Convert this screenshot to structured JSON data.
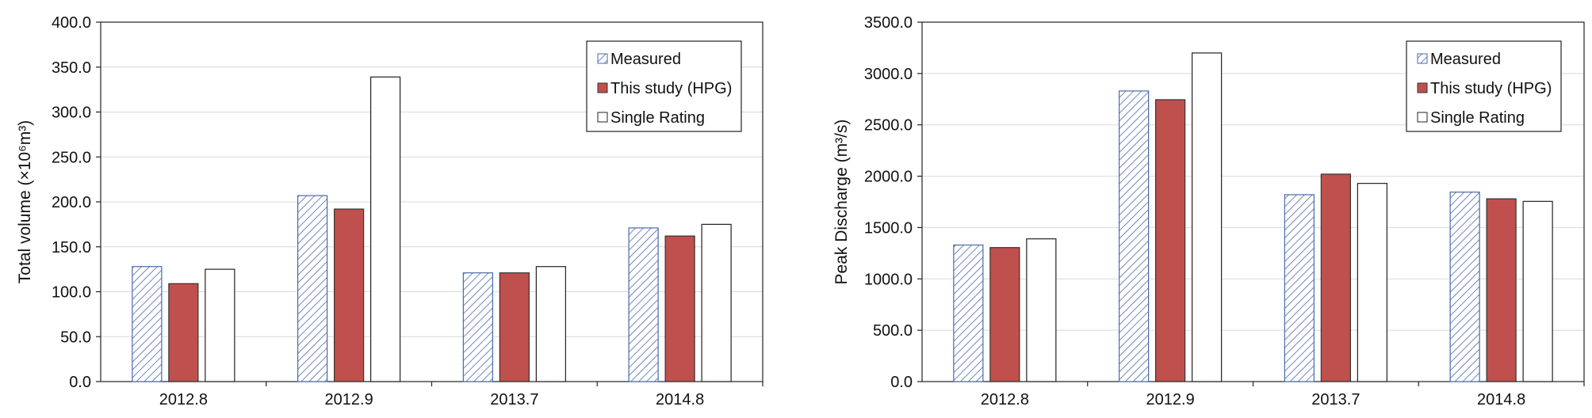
{
  "colors": {
    "measured_stroke": "#4a6aa8",
    "hpg_fill": "#c0504d",
    "hpg_stroke": "#333333",
    "single_fill": "#ffffff",
    "grid": "#d9d9d9",
    "axis": "#222222"
  },
  "chart_data": [
    {
      "type": "bar",
      "title": "",
      "xlabel": "",
      "ylabel": "Total volume (×10⁶m³)",
      "ylim": [
        0,
        400
      ],
      "ytick_labels": [
        "0.0",
        "50.0",
        "100.0",
        "150.0",
        "200.0",
        "250.0",
        "300.0",
        "350.0",
        "400.0"
      ],
      "categories": [
        "2012.8",
        "2012.9",
        "2013.7",
        "2014.8"
      ],
      "series": [
        {
          "name": "Measured",
          "style": "hatched",
          "values": [
            128,
            207,
            121,
            171
          ]
        },
        {
          "name": "This study (HPG)",
          "style": "red",
          "values": [
            109,
            192,
            121,
            162
          ]
        },
        {
          "name": "Single Rating",
          "style": "white",
          "values": [
            125,
            339,
            128,
            175
          ]
        }
      ],
      "grid": true,
      "legend_position": "top-right"
    },
    {
      "type": "bar",
      "title": "",
      "xlabel": "",
      "ylabel": "Peak Discharge (m³/s)",
      "ylim": [
        0,
        3500
      ],
      "ytick_labels": [
        "0.0",
        "500.0",
        "1000.0",
        "1500.0",
        "2000.0",
        "2500.0",
        "3000.0",
        "3500.0"
      ],
      "categories": [
        "2012.8",
        "2012.9",
        "2013.7",
        "2014.8"
      ],
      "series": [
        {
          "name": "Measured",
          "style": "hatched",
          "values": [
            1330,
            2830,
            1820,
            1845
          ]
        },
        {
          "name": "This study (HPG)",
          "style": "red",
          "values": [
            1305,
            2745,
            2020,
            1780
          ]
        },
        {
          "name": "Single Rating",
          "style": "white",
          "values": [
            1390,
            3200,
            1930,
            1755
          ]
        }
      ],
      "grid": true,
      "legend_position": "top-right"
    }
  ]
}
